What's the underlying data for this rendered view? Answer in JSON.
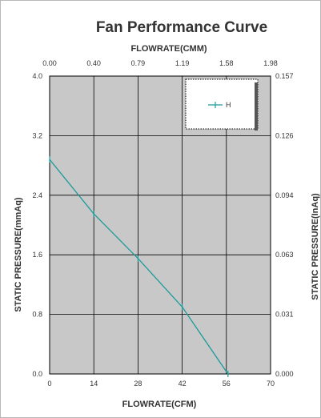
{
  "chart_data": {
    "type": "line",
    "title": "Fan Performance Curve",
    "xlabel_top": "FLOWRATE(CMM)",
    "xlabel_bottom": "FLOWRATE(CFM)",
    "ylabel_left": "STATIC PRESSURE(mmAq)",
    "ylabel_right": "STATIC PRESSURE(InAq)",
    "xlim": [
      0,
      70
    ],
    "ylim": [
      0,
      4.0
    ],
    "x_ticks_bottom": [
      "0",
      "14",
      "28",
      "42",
      "56",
      "70"
    ],
    "x_ticks_top": [
      "0.00",
      "0.40",
      "0.79",
      "1.19",
      "1.58",
      "1.98"
    ],
    "y_ticks_left": [
      "0.0",
      "0.8",
      "1.6",
      "2.4",
      "3.2",
      "4.0"
    ],
    "y_ticks_right": [
      "0.000",
      "0.031",
      "0.063",
      "0.094",
      "0.126",
      "0.157"
    ],
    "grid": true,
    "legend_position": "top-right",
    "plot_background": "#c8c8c8",
    "series": [
      {
        "name": "H",
        "color": "#1f9a9a",
        "x": [
          0,
          14,
          28,
          42,
          56.5
        ],
        "y": [
          2.88,
          2.15,
          1.55,
          0.9,
          0.0
        ]
      }
    ]
  }
}
